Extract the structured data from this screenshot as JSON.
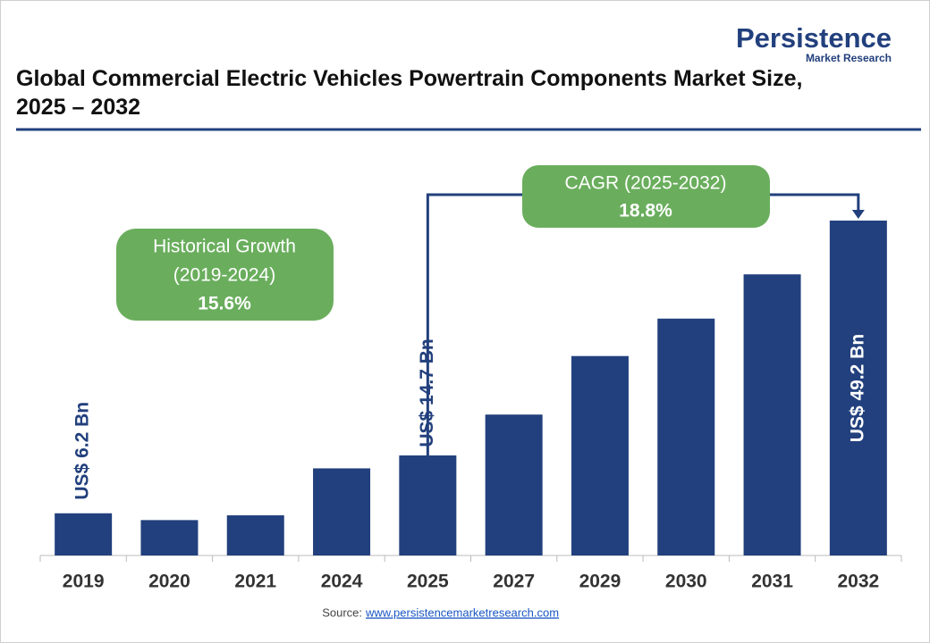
{
  "chart_data": {
    "type": "bar",
    "title": "Global Commercial Electric Vehicles Powertrain Components Market Size, 2025 – 2032",
    "brand": "Persistence",
    "brand_sub": "Market Research",
    "categories": [
      "2019",
      "2020",
      "2021",
      "2024",
      "2025",
      "2027",
      "2029",
      "2030",
      "2031",
      "2032"
    ],
    "values": [
      6.2,
      5.2,
      5.9,
      12.8,
      14.7,
      20.7,
      29.3,
      34.8,
      41.3,
      49.2
    ],
    "value_labels": [
      "US$ 6.2 Bn",
      null,
      null,
      null,
      "US$ 14.7 Bn",
      null,
      null,
      null,
      null,
      "US$ 49.2 Bn"
    ],
    "color": "#22407d",
    "annotations": {
      "historical": {
        "label": "Historical Growth",
        "period": "(2019-2024)",
        "value": "15.6%"
      },
      "cagr": {
        "label": "CAGR (2025-2032)",
        "value": "18.8%"
      }
    },
    "source_label": "Source:",
    "source_link": "www.persistencemarketresearch.com"
  }
}
